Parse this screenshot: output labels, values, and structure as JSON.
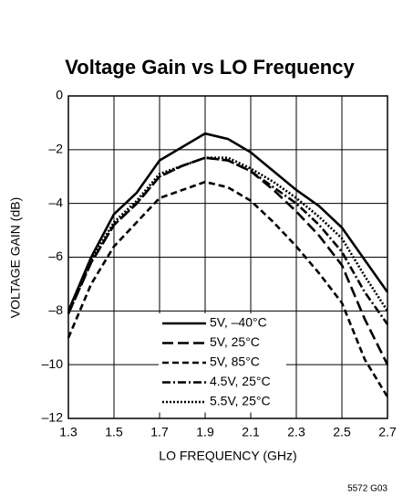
{
  "chart_data": {
    "type": "line",
    "title": "Voltage Gain vs LO Frequency",
    "x_label": "LO FREQUENCY (GHz)",
    "y_label": "VOLTAGE GAIN (dB)",
    "figure_code": "5572 G03",
    "x": [
      1.3,
      1.4,
      1.5,
      1.6,
      1.7,
      1.8,
      1.9,
      2.0,
      2.1,
      2.2,
      2.3,
      2.4,
      2.5,
      2.6,
      2.7
    ],
    "series": [
      {
        "name": "5V, –40°C",
        "color": "#000000",
        "dash": "solid",
        "values": [
          -8.0,
          -6.0,
          -4.4,
          -3.6,
          -2.4,
          -1.9,
          -1.4,
          -1.6,
          -2.1,
          -2.8,
          -3.5,
          -4.1,
          -4.9,
          -6.1,
          -7.3
        ]
      },
      {
        "name": "5V, 25°C",
        "color": "#000000",
        "dash": "long-dash",
        "values": [
          -8.1,
          -6.2,
          -4.8,
          -4.0,
          -3.0,
          -2.6,
          -2.3,
          -2.4,
          -2.8,
          -3.5,
          -4.3,
          -5.2,
          -6.3,
          -8.3,
          -10.0
        ]
      },
      {
        "name": "5V, 85°C",
        "color": "#000000",
        "dash": "short-dash",
        "values": [
          -9.0,
          -7.0,
          -5.6,
          -4.7,
          -3.8,
          -3.5,
          -3.2,
          -3.4,
          -3.9,
          -4.7,
          -5.6,
          -6.6,
          -7.7,
          -9.8,
          -11.2
        ]
      },
      {
        "name": "4.5V, 25°C",
        "color": "#000000",
        "dash": "dash-dot",
        "values": [
          -8.1,
          -6.2,
          -4.8,
          -4.0,
          -3.0,
          -2.6,
          -2.3,
          -2.4,
          -2.8,
          -3.4,
          -4.0,
          -4.8,
          -5.8,
          -7.3,
          -8.5
        ]
      },
      {
        "name": "5.5V, 25°C",
        "color": "#000000",
        "dash": "dotted",
        "values": [
          -8.1,
          -6.1,
          -4.7,
          -3.9,
          -2.9,
          -2.6,
          -2.3,
          -2.3,
          -2.7,
          -3.2,
          -3.8,
          -4.5,
          -5.3,
          -6.7,
          -8.0
        ]
      }
    ],
    "xlim": [
      1.3,
      2.7
    ],
    "xticks": [
      1.3,
      1.5,
      1.7,
      1.9,
      2.1,
      2.3,
      2.5,
      2.7
    ],
    "ylim": [
      -12,
      0
    ],
    "yticks": [
      {
        "value": -12,
        "label": "–12"
      },
      {
        "value": -10,
        "label": "–10"
      },
      {
        "value": -8,
        "label": "–8"
      },
      {
        "value": -6,
        "label": "–6"
      },
      {
        "value": -4,
        "label": "–4"
      },
      {
        "value": -2,
        "label": "–2"
      },
      0
    ],
    "grid": true,
    "legend": "lower-center"
  }
}
